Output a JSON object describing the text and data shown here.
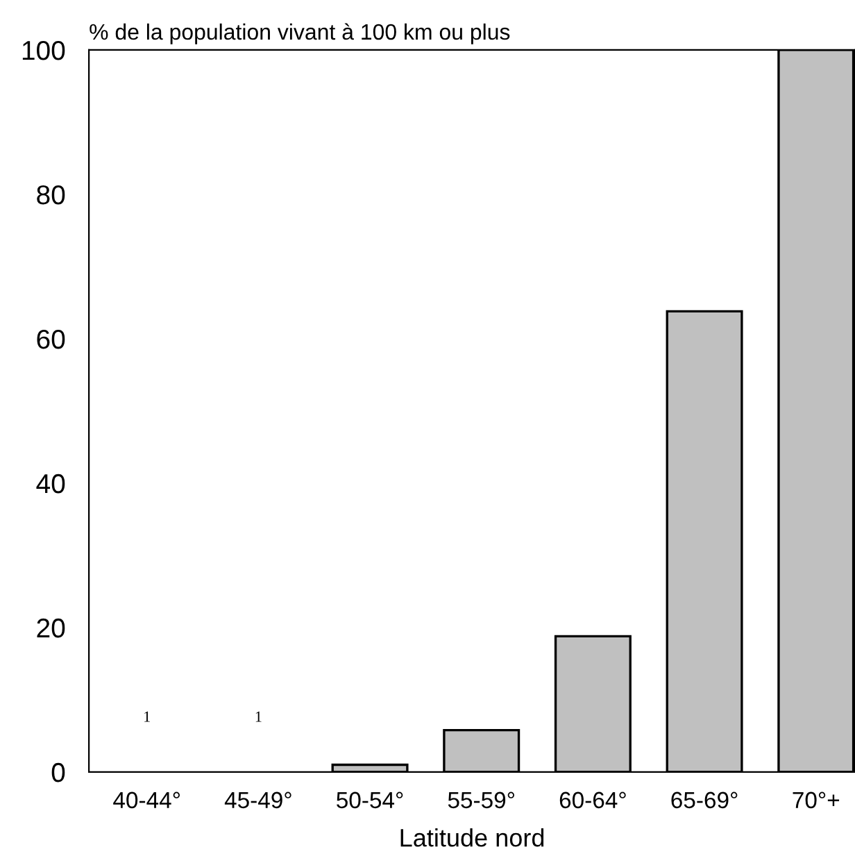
{
  "chart_data": {
    "type": "bar",
    "ylabel": "% de la population vivant à 100 km ou plus",
    "xlabel": "Latitude nord",
    "categories": [
      "40-44°",
      "45-49°",
      "50-54°",
      "55-59°",
      "60-64°",
      "65-69°",
      "70°+"
    ],
    "values": [
      null,
      null,
      1,
      5.8,
      18.8,
      63.8,
      100
    ],
    "color": "#c0c0c0",
    "ylim": [
      0,
      100
    ],
    "yticks": [
      0,
      20,
      40,
      60,
      80,
      100
    ],
    "grid": false,
    "legend": false,
    "annotations": [
      "1",
      "1"
    ]
  }
}
